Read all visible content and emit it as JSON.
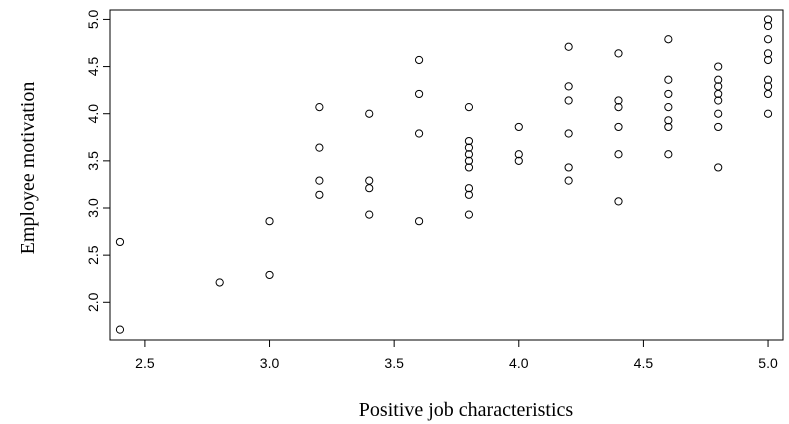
{
  "chart_data": {
    "type": "scatter",
    "title": "",
    "xlabel": "Positive job characteristics",
    "ylabel": "Employee motivation",
    "xlim": [
      2.36,
      5.06
    ],
    "ylim": [
      1.6,
      5.1
    ],
    "x_ticks": [
      2.5,
      3.0,
      3.5,
      4.0,
      4.5,
      5.0
    ],
    "x_tick_labels": [
      "2.5",
      "3.0",
      "3.5",
      "4.0",
      "4.5",
      "5.0"
    ],
    "y_ticks": [
      2.0,
      2.5,
      3.0,
      3.5,
      4.0,
      4.5,
      5.0
    ],
    "y_tick_labels": [
      "2.0",
      "2.5",
      "3.0",
      "3.5",
      "4.0",
      "4.5",
      "5.0"
    ],
    "grid": false,
    "legend": "none",
    "marker": "open-circle",
    "points": [
      {
        "x": 2.4,
        "y": 2.64
      },
      {
        "x": 2.4,
        "y": 1.71
      },
      {
        "x": 2.8,
        "y": 2.21
      },
      {
        "x": 3.0,
        "y": 2.86
      },
      {
        "x": 3.0,
        "y": 2.29
      },
      {
        "x": 3.2,
        "y": 4.07
      },
      {
        "x": 3.2,
        "y": 3.64
      },
      {
        "x": 3.2,
        "y": 3.29
      },
      {
        "x": 3.2,
        "y": 3.14
      },
      {
        "x": 3.4,
        "y": 4.0
      },
      {
        "x": 3.4,
        "y": 3.29
      },
      {
        "x": 3.4,
        "y": 3.21
      },
      {
        "x": 3.4,
        "y": 2.93
      },
      {
        "x": 3.6,
        "y": 4.57
      },
      {
        "x": 3.6,
        "y": 4.21
      },
      {
        "x": 3.6,
        "y": 3.79
      },
      {
        "x": 3.6,
        "y": 2.86
      },
      {
        "x": 3.8,
        "y": 4.07
      },
      {
        "x": 3.8,
        "y": 3.71
      },
      {
        "x": 3.8,
        "y": 3.64
      },
      {
        "x": 3.8,
        "y": 3.57
      },
      {
        "x": 3.8,
        "y": 3.5
      },
      {
        "x": 3.8,
        "y": 3.43
      },
      {
        "x": 3.8,
        "y": 3.21
      },
      {
        "x": 3.8,
        "y": 3.14
      },
      {
        "x": 3.8,
        "y": 2.93
      },
      {
        "x": 4.0,
        "y": 3.86
      },
      {
        "x": 4.0,
        "y": 3.57
      },
      {
        "x": 4.0,
        "y": 3.5
      },
      {
        "x": 4.2,
        "y": 4.71
      },
      {
        "x": 4.2,
        "y": 4.29
      },
      {
        "x": 4.2,
        "y": 4.14
      },
      {
        "x": 4.2,
        "y": 3.79
      },
      {
        "x": 4.2,
        "y": 3.43
      },
      {
        "x": 4.2,
        "y": 3.29
      },
      {
        "x": 4.4,
        "y": 4.64
      },
      {
        "x": 4.4,
        "y": 4.14
      },
      {
        "x": 4.4,
        "y": 4.07
      },
      {
        "x": 4.4,
        "y": 3.86
      },
      {
        "x": 4.4,
        "y": 3.57
      },
      {
        "x": 4.4,
        "y": 3.07
      },
      {
        "x": 4.6,
        "y": 4.79
      },
      {
        "x": 4.6,
        "y": 4.36
      },
      {
        "x": 4.6,
        "y": 4.21
      },
      {
        "x": 4.6,
        "y": 4.07
      },
      {
        "x": 4.6,
        "y": 3.93
      },
      {
        "x": 4.6,
        "y": 3.86
      },
      {
        "x": 4.6,
        "y": 3.57
      },
      {
        "x": 4.8,
        "y": 4.5
      },
      {
        "x": 4.8,
        "y": 4.36
      },
      {
        "x": 4.8,
        "y": 4.29
      },
      {
        "x": 4.8,
        "y": 4.21
      },
      {
        "x": 4.8,
        "y": 4.14
      },
      {
        "x": 4.8,
        "y": 4.0
      },
      {
        "x": 4.8,
        "y": 3.86
      },
      {
        "x": 4.8,
        "y": 3.43
      },
      {
        "x": 5.0,
        "y": 5.0
      },
      {
        "x": 5.0,
        "y": 4.93
      },
      {
        "x": 5.0,
        "y": 4.79
      },
      {
        "x": 5.0,
        "y": 4.64
      },
      {
        "x": 5.0,
        "y": 4.57
      },
      {
        "x": 5.0,
        "y": 4.36
      },
      {
        "x": 5.0,
        "y": 4.29
      },
      {
        "x": 5.0,
        "y": 4.21
      },
      {
        "x": 5.0,
        "y": 4.0
      }
    ]
  }
}
